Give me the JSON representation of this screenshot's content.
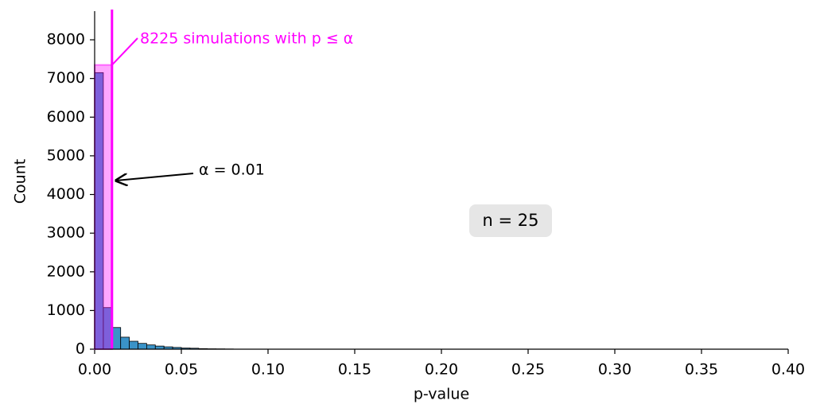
{
  "chart_data": {
    "type": "histogram",
    "xlabel": "p-value",
    "ylabel": "Count",
    "bins": [
      0,
      0.005,
      0.01,
      0.015,
      0.02,
      0.025,
      0.03,
      0.035,
      0.04,
      0.045,
      0.05,
      0.055,
      0.06,
      0.065,
      0.07,
      0.075,
      0.08
    ],
    "values": [
      7150,
      1075,
      560,
      310,
      205,
      150,
      110,
      80,
      60,
      45,
      30,
      25,
      15,
      10,
      8,
      5
    ],
    "color": "#3a93c8",
    "xlim": [
      0,
      0.4
    ],
    "xticks": [
      {
        "value": 0,
        "label": "0.00"
      },
      0.05,
      {
        "value": 0.1,
        "label": "0.10"
      },
      0.15,
      {
        "value": 0.2,
        "label": "0.20"
      },
      0.25,
      {
        "value": 0.3,
        "label": "0.30"
      },
      0.35,
      {
        "value": 0.4,
        "label": "0.40"
      }
    ],
    "ylim": [
      0,
      8700
    ],
    "yticks": [
      0,
      1000,
      2000,
      3000,
      4000,
      5000,
      6000,
      7000,
      8000
    ],
    "alpha": 0.01,
    "highlight_color": "#ff00ff",
    "highlight_top": 7350,
    "annotations": [
      "8225 simulations with p ≤ α",
      "α = 0.01",
      "n = 25"
    ]
  }
}
